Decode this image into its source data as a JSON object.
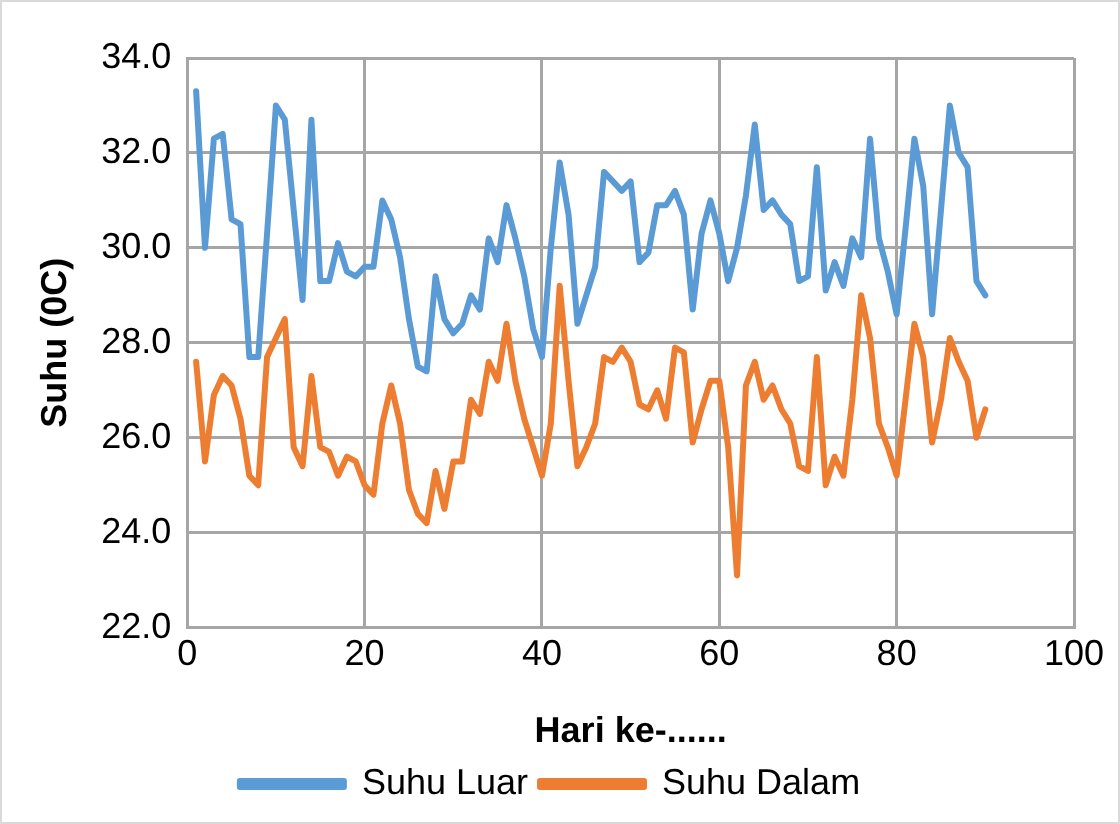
{
  "chart_data": {
    "type": "line",
    "xlabel": "Hari ke-......",
    "ylabel": "Suhu (0C)",
    "x": [
      1,
      2,
      3,
      4,
      5,
      6,
      7,
      8,
      9,
      10,
      11,
      12,
      13,
      14,
      15,
      16,
      17,
      18,
      19,
      20,
      21,
      22,
      23,
      24,
      25,
      26,
      27,
      28,
      29,
      30,
      31,
      32,
      33,
      34,
      35,
      36,
      37,
      38,
      39,
      40,
      41,
      42,
      43,
      44,
      45,
      46,
      47,
      48,
      49,
      50,
      51,
      52,
      53,
      54,
      55,
      56,
      57,
      58,
      59,
      60,
      61,
      62,
      63,
      64,
      65,
      66,
      67,
      68,
      69,
      70,
      71,
      72,
      73,
      74,
      75,
      76,
      77,
      78,
      79,
      80,
      81,
      82,
      83,
      84,
      85,
      86,
      87,
      88,
      89,
      90
    ],
    "series": [
      {
        "name": "Suhu Luar",
        "color": "#5b9bd5",
        "values": [
          33.3,
          30.0,
          32.3,
          32.4,
          30.6,
          30.5,
          27.7,
          27.7,
          30.3,
          33.0,
          32.7,
          30.8,
          28.9,
          32.7,
          29.3,
          29.3,
          30.1,
          29.5,
          29.4,
          29.6,
          29.6,
          31.0,
          30.6,
          29.8,
          28.5,
          27.5,
          27.4,
          29.4,
          28.5,
          28.2,
          28.4,
          29.0,
          28.7,
          30.2,
          29.7,
          30.9,
          30.2,
          29.4,
          28.3,
          27.7,
          30.0,
          31.8,
          30.7,
          28.4,
          29.0,
          29.6,
          31.6,
          31.4,
          31.2,
          31.4,
          29.7,
          29.9,
          30.9,
          30.9,
          31.2,
          30.7,
          28.7,
          30.3,
          31.0,
          30.3,
          29.3,
          30.0,
          31.1,
          32.6,
          30.8,
          31.0,
          30.7,
          30.5,
          29.3,
          29.4,
          31.7,
          29.1,
          29.7,
          29.2,
          30.2,
          29.8,
          32.3,
          30.2,
          29.5,
          28.6,
          30.4,
          32.3,
          31.3,
          28.6,
          30.8,
          33.0,
          32.0,
          31.7,
          29.3,
          29.0
        ]
      },
      {
        "name": "Suhu Dalam",
        "color": "#ed7d31",
        "values": [
          27.6,
          25.5,
          26.9,
          27.3,
          27.1,
          26.4,
          25.2,
          25.0,
          27.7,
          28.1,
          28.5,
          25.8,
          25.4,
          27.3,
          25.8,
          25.7,
          25.2,
          25.6,
          25.5,
          25.0,
          24.8,
          26.3,
          27.1,
          26.3,
          24.9,
          24.4,
          24.2,
          25.3,
          24.5,
          25.5,
          25.5,
          26.8,
          26.5,
          27.6,
          27.2,
          28.4,
          27.2,
          26.4,
          25.8,
          25.2,
          26.3,
          29.2,
          27.2,
          25.4,
          25.8,
          26.3,
          27.7,
          27.6,
          27.9,
          27.6,
          26.7,
          26.6,
          27.0,
          26.4,
          27.9,
          27.8,
          25.9,
          26.6,
          27.2,
          27.2,
          25.8,
          23.1,
          27.1,
          27.6,
          26.8,
          27.1,
          26.6,
          26.3,
          25.4,
          25.3,
          27.7,
          25.0,
          25.6,
          25.2,
          26.8,
          29.0,
          28.1,
          26.3,
          25.8,
          25.2,
          26.8,
          28.4,
          27.7,
          25.9,
          26.8,
          28.1,
          27.6,
          27.2,
          26.0,
          26.6
        ]
      }
    ],
    "xlim": [
      0,
      100
    ],
    "xticks": [
      0,
      20,
      40,
      60,
      80,
      100
    ],
    "ylim": [
      22,
      34
    ],
    "yticks": [
      {
        "value": 22,
        "label": "22.0"
      },
      {
        "value": 24,
        "label": "24.0"
      },
      {
        "value": 26,
        "label": "26.0"
      },
      {
        "value": 28,
        "label": "28.0"
      },
      {
        "value": 30,
        "label": "30.0"
      },
      {
        "value": 32,
        "label": "32.0"
      },
      {
        "value": 34,
        "label": "34.0"
      }
    ],
    "grid": true,
    "legend": "bottom",
    "marker": "none",
    "line_style": "solid"
  }
}
